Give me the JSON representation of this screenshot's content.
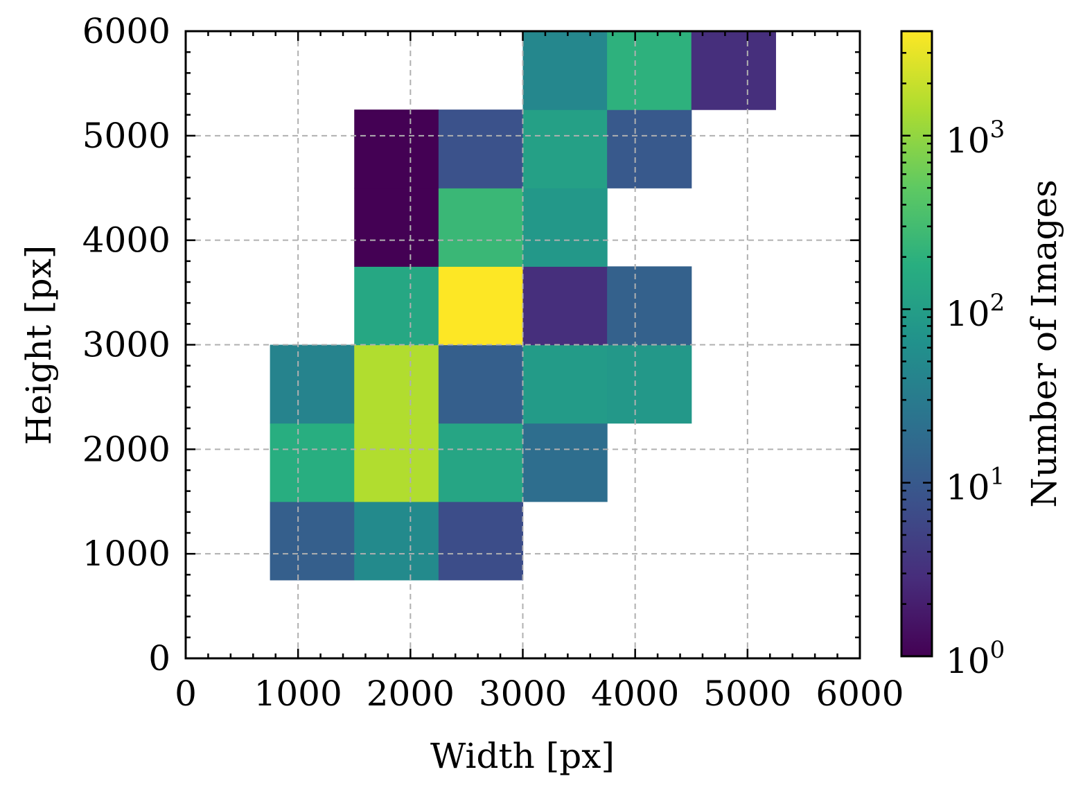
{
  "chart_data": {
    "type": "heatmap",
    "xlabel": "Width [px]",
    "ylabel": "Height [px]",
    "xlim": [
      0,
      6000
    ],
    "ylim": [
      0,
      6000
    ],
    "xticks": [
      "0",
      "1000",
      "2000",
      "3000",
      "4000",
      "5000",
      "6000"
    ],
    "yticks": [
      "0",
      "1000",
      "2000",
      "3000",
      "4000",
      "5000",
      "6000"
    ],
    "grid": true,
    "bin_size": 750,
    "colorbar": {
      "label": "Number of Images",
      "scale": "log",
      "range": [
        1,
        4000
      ],
      "ticks": [
        {
          "value": 1,
          "base": "10",
          "exp": "0"
        },
        {
          "value": 10,
          "base": "10",
          "exp": "1"
        },
        {
          "value": 100,
          "base": "10",
          "exp": "2"
        },
        {
          "value": 1000,
          "base": "10",
          "exp": "3"
        }
      ]
    },
    "cells": [
      {
        "x": 750,
        "y": 750,
        "count": 12
      },
      {
        "x": 1500,
        "y": 750,
        "count": 50
      },
      {
        "x": 2250,
        "y": 750,
        "count": 7
      },
      {
        "x": 750,
        "y": 1500,
        "count": 180
      },
      {
        "x": 1500,
        "y": 1500,
        "count": 1500
      },
      {
        "x": 2250,
        "y": 1500,
        "count": 130
      },
      {
        "x": 3000,
        "y": 1500,
        "count": 20
      },
      {
        "x": 750,
        "y": 2250,
        "count": 40
      },
      {
        "x": 1500,
        "y": 2250,
        "count": 1500
      },
      {
        "x": 2250,
        "y": 2250,
        "count": 12
      },
      {
        "x": 3000,
        "y": 2250,
        "count": 90
      },
      {
        "x": 3750,
        "y": 2250,
        "count": 80
      },
      {
        "x": 1500,
        "y": 3000,
        "count": 140
      },
      {
        "x": 2250,
        "y": 3000,
        "count": 4000
      },
      {
        "x": 3000,
        "y": 3000,
        "count": 3
      },
      {
        "x": 3750,
        "y": 3000,
        "count": 13
      },
      {
        "x": 1500,
        "y": 3750,
        "count": 1
      },
      {
        "x": 2250,
        "y": 3750,
        "count": 250
      },
      {
        "x": 3000,
        "y": 3750,
        "count": 80
      },
      {
        "x": 1500,
        "y": 4500,
        "count": 1
      },
      {
        "x": 2250,
        "y": 4500,
        "count": 8
      },
      {
        "x": 3000,
        "y": 4500,
        "count": 110
      },
      {
        "x": 3750,
        "y": 4500,
        "count": 10
      },
      {
        "x": 3000,
        "y": 5250,
        "count": 45
      },
      {
        "x": 3750,
        "y": 5250,
        "count": 200
      },
      {
        "x": 4500,
        "y": 5250,
        "count": 3
      }
    ]
  }
}
